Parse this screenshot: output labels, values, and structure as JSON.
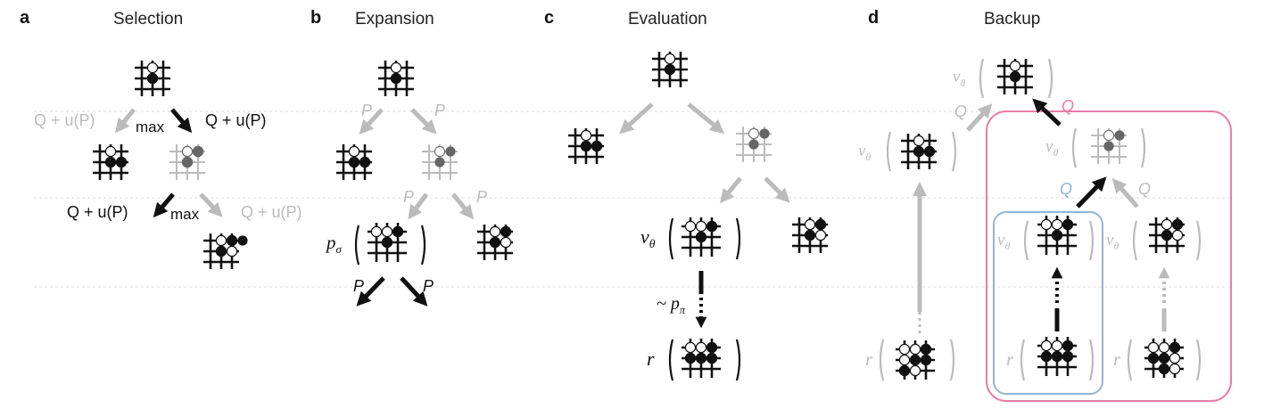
{
  "panels": [
    {
      "letter": "a",
      "title": "Selection"
    },
    {
      "letter": "b",
      "title": "Expansion"
    },
    {
      "letter": "c",
      "title": "Evaluation"
    },
    {
      "letter": "d",
      "title": "Backup"
    }
  ],
  "labels": {
    "q_u_p": "Q + u(P)",
    "max": "max",
    "p": "P",
    "q": "Q",
    "p_sigma": "p",
    "sigma": "σ",
    "v_theta": "v",
    "theta": "θ",
    "tilde_p_pi": "~ p",
    "pi": "π",
    "r": "r"
  },
  "colors": {
    "dark": "#111111",
    "gray": "#bbbbbb",
    "pink": "#e87ca6",
    "blue": "#93b4d8",
    "separator": "#dddddd"
  }
}
